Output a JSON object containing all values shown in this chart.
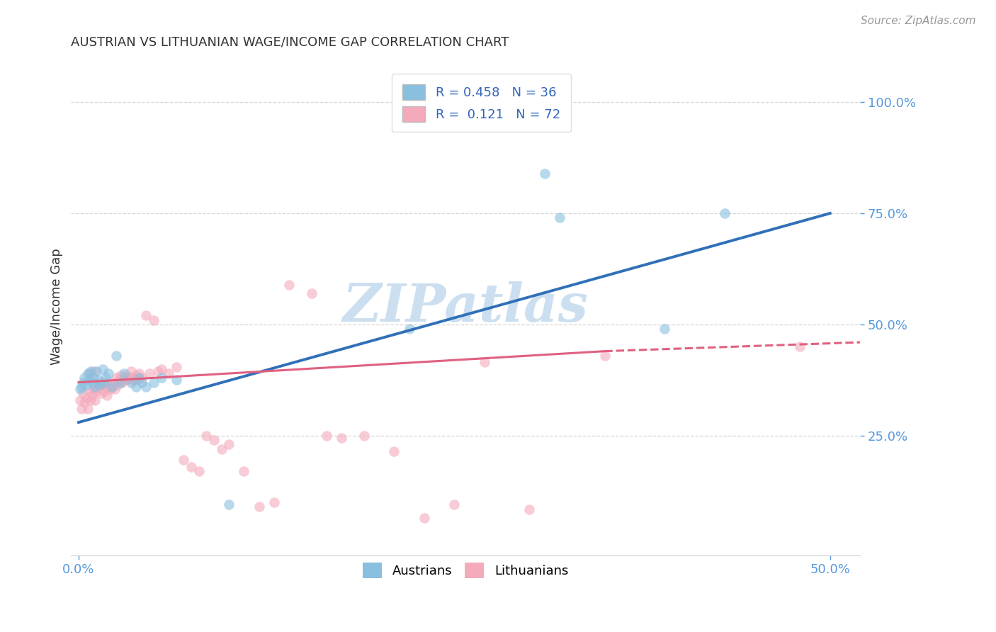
{
  "title": "AUSTRIAN VS LITHUANIAN WAGE/INCOME GAP CORRELATION CHART",
  "source_text": "Source: ZipAtlas.com",
  "ylabel": "Wage/Income Gap",
  "xlim": [
    -0.005,
    0.52
  ],
  "ylim": [
    -0.02,
    1.1
  ],
  "y_tick_positions_right": [
    0.25,
    0.5,
    0.75,
    1.0
  ],
  "y_tick_labels_right": [
    "25.0%",
    "50.0%",
    "75.0%",
    "100.0%"
  ],
  "x_tick_pos": [
    0.0,
    0.5
  ],
  "x_tick_labels": [
    "0.0%",
    "50.0%"
  ],
  "legend_r1": "R = 0.458   N = 36",
  "legend_r2": "R =  0.121   N = 72",
  "blue_scatter_color": "#89bfdf",
  "pink_scatter_color": "#f4aabb",
  "blue_line_color": "#3070b8",
  "pink_line_color": "#e06080",
  "watermark_color": "#ccdff0",
  "background_color": "#ffffff",
  "grid_color": "#cccccc",
  "title_color": "#333333",
  "right_tick_color": "#5599dd",
  "bottom_tick_color": "#5599dd",
  "legend_patch_blue": "#89bfdf",
  "legend_patch_pink": "#f4aabb",
  "legend_text_color": "#3366bb",
  "source_color": "#999999",
  "austrians_x": [
    0.001,
    0.002,
    0.003,
    0.004,
    0.005,
    0.006,
    0.007,
    0.008,
    0.009,
    0.01,
    0.011,
    0.012,
    0.013,
    0.014,
    0.016,
    0.017,
    0.018,
    0.02,
    0.022,
    0.025,
    0.028,
    0.03,
    0.035,
    0.038,
    0.04,
    0.042,
    0.045,
    0.05,
    0.055,
    0.065,
    0.1,
    0.22,
    0.31,
    0.32,
    0.39,
    0.43
  ],
  "austrians_y": [
    0.355,
    0.36,
    0.37,
    0.38,
    0.365,
    0.39,
    0.375,
    0.395,
    0.37,
    0.38,
    0.36,
    0.395,
    0.375,
    0.365,
    0.4,
    0.37,
    0.38,
    0.39,
    0.36,
    0.43,
    0.37,
    0.39,
    0.37,
    0.36,
    0.38,
    0.37,
    0.36,
    0.37,
    0.38,
    0.375,
    0.095,
    0.49,
    0.84,
    0.74,
    0.49,
    0.75
  ],
  "lithuanians_x": [
    0.001,
    0.002,
    0.003,
    0.004,
    0.005,
    0.006,
    0.007,
    0.007,
    0.008,
    0.009,
    0.01,
    0.01,
    0.011,
    0.012,
    0.013,
    0.014,
    0.015,
    0.016,
    0.017,
    0.018,
    0.019,
    0.02,
    0.021,
    0.022,
    0.023,
    0.024,
    0.025,
    0.026,
    0.027,
    0.028,
    0.029,
    0.03,
    0.031,
    0.032,
    0.033,
    0.034,
    0.035,
    0.036,
    0.037,
    0.038,
    0.039,
    0.04,
    0.042,
    0.045,
    0.047,
    0.05,
    0.053,
    0.055,
    0.06,
    0.065,
    0.07,
    0.075,
    0.08,
    0.085,
    0.09,
    0.095,
    0.1,
    0.11,
    0.12,
    0.13,
    0.14,
    0.155,
    0.165,
    0.175,
    0.19,
    0.21,
    0.23,
    0.25,
    0.27,
    0.3,
    0.35,
    0.48
  ],
  "lithuanians_y": [
    0.33,
    0.31,
    0.345,
    0.325,
    0.335,
    0.31,
    0.35,
    0.39,
    0.33,
    0.34,
    0.355,
    0.395,
    0.33,
    0.35,
    0.36,
    0.37,
    0.345,
    0.365,
    0.35,
    0.365,
    0.34,
    0.36,
    0.355,
    0.37,
    0.365,
    0.355,
    0.38,
    0.365,
    0.375,
    0.385,
    0.37,
    0.38,
    0.375,
    0.385,
    0.375,
    0.38,
    0.395,
    0.375,
    0.38,
    0.385,
    0.375,
    0.39,
    0.38,
    0.52,
    0.39,
    0.51,
    0.395,
    0.4,
    0.39,
    0.405,
    0.195,
    0.18,
    0.17,
    0.25,
    0.24,
    0.22,
    0.23,
    0.17,
    0.09,
    0.1,
    0.59,
    0.57,
    0.25,
    0.245,
    0.25,
    0.215,
    0.065,
    0.095,
    0.415,
    0.085,
    0.43,
    0.45
  ]
}
